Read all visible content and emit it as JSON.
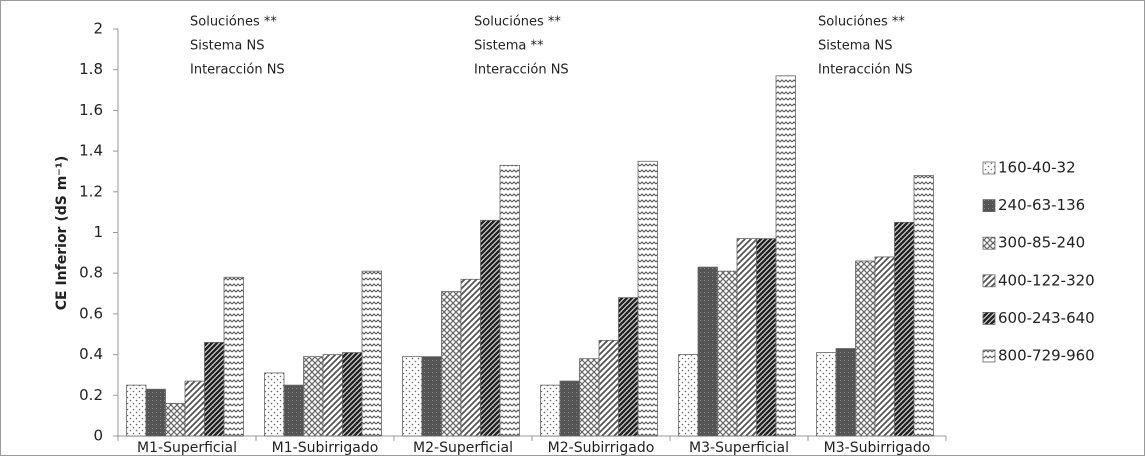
{
  "chart_data": {
    "type": "bar",
    "y_label": "CE Inferior (dS m⁻¹)",
    "categories": [
      "M1-Superficial",
      "M1-Subirrigado",
      "M2-Superficial",
      "M2-Subirrigado",
      "M3-Superficial",
      "M3-Subirrigado"
    ],
    "series": [
      {
        "name": "160-40-32",
        "color": "#ffffff",
        "pattern": "dots",
        "values": [
          0.25,
          0.31,
          0.39,
          0.25,
          0.4,
          0.41
        ]
      },
      {
        "name": "240-63-136",
        "color": "#555555",
        "pattern": "dark",
        "values": [
          0.23,
          0.25,
          0.39,
          0.27,
          0.83,
          0.43
        ]
      },
      {
        "name": "300-85-240",
        "color": "#888888",
        "pattern": "crosshatch",
        "values": [
          0.16,
          0.39,
          0.71,
          0.38,
          0.81,
          0.86
        ]
      },
      {
        "name": "400-122-320",
        "color": "#999999",
        "pattern": "diagonal",
        "values": [
          0.27,
          0.4,
          0.77,
          0.47,
          0.97,
          0.88
        ]
      },
      {
        "name": "600-243-640",
        "color": "#333333",
        "pattern": "darkdiagonal",
        "values": [
          0.46,
          0.41,
          1.06,
          0.68,
          0.97,
          1.05
        ]
      },
      {
        "name": "800-729-960",
        "color": "#777777",
        "pattern": "zigzag",
        "values": [
          0.78,
          0.81,
          1.33,
          1.35,
          1.77,
          1.28
        ]
      }
    ],
    "annotations": [
      [
        "Soluciónes **",
        "Sistema NS",
        "Interacción NS"
      ],
      [
        "Soluciónes **",
        "Sistema **",
        "Interacción NS"
      ],
      [
        "Soluciónes **",
        "Sistema NS",
        "Interacción NS"
      ]
    ],
    "ylim": [
      0,
      2
    ],
    "yticks": [
      0,
      0.2,
      0.4,
      0.6,
      0.8,
      1,
      1.2,
      1.4,
      1.6,
      1.8,
      2
    ],
    "grid": false,
    "legend": "right"
  }
}
